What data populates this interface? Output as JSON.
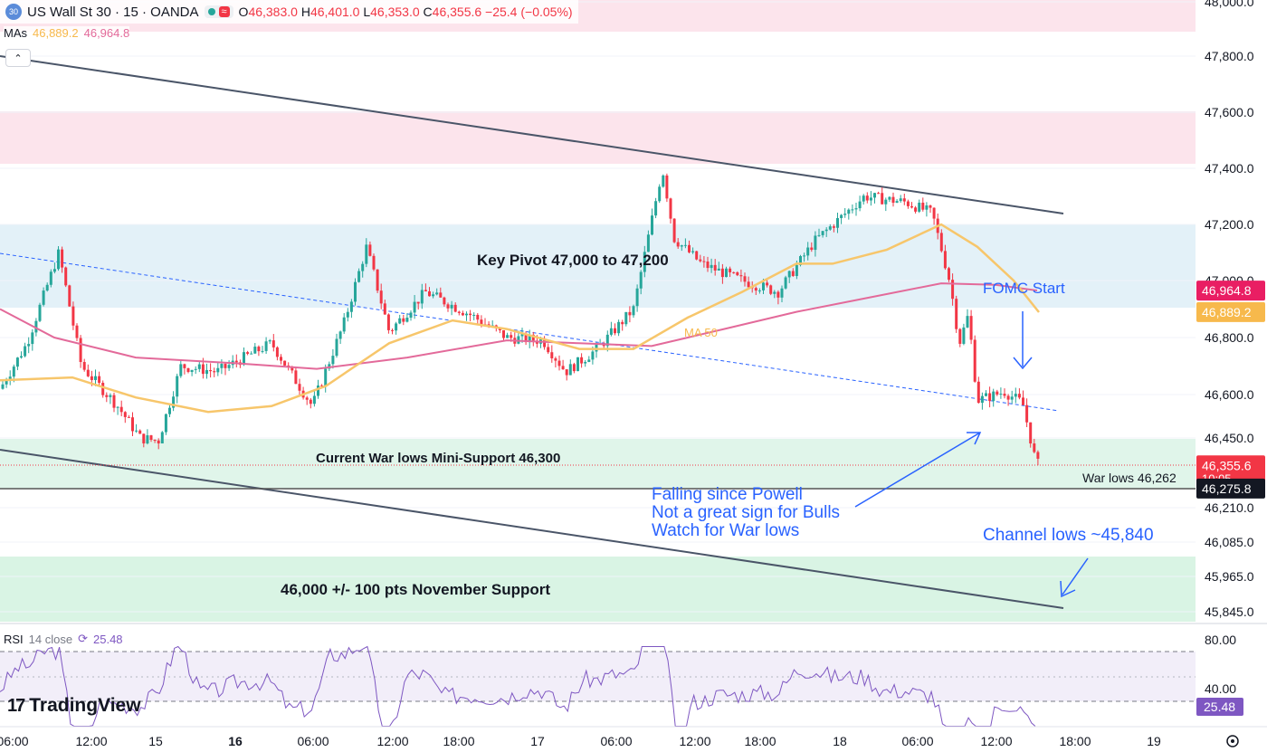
{
  "header": {
    "symbol_badge": "30",
    "title": "US Wall St 30 · 15 · OANDA",
    "ohlc": {
      "o_label": "O",
      "o": "46,383.0",
      "h_label": "H",
      "h": "46,401.0",
      "l_label": "L",
      "l": "46,353.0",
      "c_label": "C",
      "c": "46,355.6",
      "change": "−25.4 (−0.05%)"
    },
    "mas_label": "MAs",
    "ma50_value": "46,889.2",
    "ma200_value": "46,964.8"
  },
  "rsi": {
    "label": "RSI",
    "params": "14 close",
    "value": "25.48",
    "axis": [
      "80.00",
      "40.00"
    ]
  },
  "brand": "TradingView",
  "price_axis": [
    {
      "label": "48,000.0",
      "price": 48000
    },
    {
      "label": "47,800.0",
      "price": 47800
    },
    {
      "label": "47,600.0",
      "price": 47600
    },
    {
      "label": "47,400.0",
      "price": 47400
    },
    {
      "label": "47,200.0",
      "price": 47200
    },
    {
      "label": "47,000.0",
      "price": 47000
    },
    {
      "label": "46,800.0",
      "price": 46800
    },
    {
      "label": "46,600.0",
      "price": 46600
    },
    {
      "label": "46,450.0",
      "price": 46450
    },
    {
      "label": "46,210.0",
      "price": 46210
    },
    {
      "label": "46,085.0",
      "price": 46085
    },
    {
      "label": "45,965.0",
      "price": 45965
    },
    {
      "label": "45,845.0",
      "price": 45845
    }
  ],
  "price_tags": [
    {
      "label": "46,964.8",
      "price": 46964.8,
      "color": "#e91e63"
    },
    {
      "label": "46,889.2",
      "price": 46889.2,
      "color": "#f7b94c"
    },
    {
      "label": "46,355.6",
      "sub": "10:05",
      "price": 46355.6,
      "color": "#f23645"
    },
    {
      "label": "46,275.8",
      "price": 46275.8,
      "color": "#131722"
    }
  ],
  "time_axis": [
    "06:00",
    "12:00",
    "15",
    "16",
    "06:00",
    "12:00",
    "18:00",
    "17",
    "06:00",
    "12:00",
    "18:00",
    "18",
    "06:00",
    "12:00",
    "18:00",
    "19"
  ],
  "annotations": {
    "key_pivot": "Key Pivot 47,000 to 47,200",
    "ma50": "MA 50",
    "fomc": "FOMC Start",
    "mini_support": "Current War lows Mini-Support 46,300",
    "war_lows": "War lows 46,262",
    "falling_1": "Falling since Powell",
    "falling_2": "Not a great sign for Bulls",
    "falling_3": "Watch for War lows",
    "channel_lows": "Channel lows ~45,840",
    "november": "46,000 +/- 100 pts November Support"
  },
  "colors": {
    "up": "#26a69a",
    "down": "#f23645",
    "ma50": "#f7c66b",
    "ma200": "#e36a9a",
    "annotation_blue": "#2962ff"
  }
}
